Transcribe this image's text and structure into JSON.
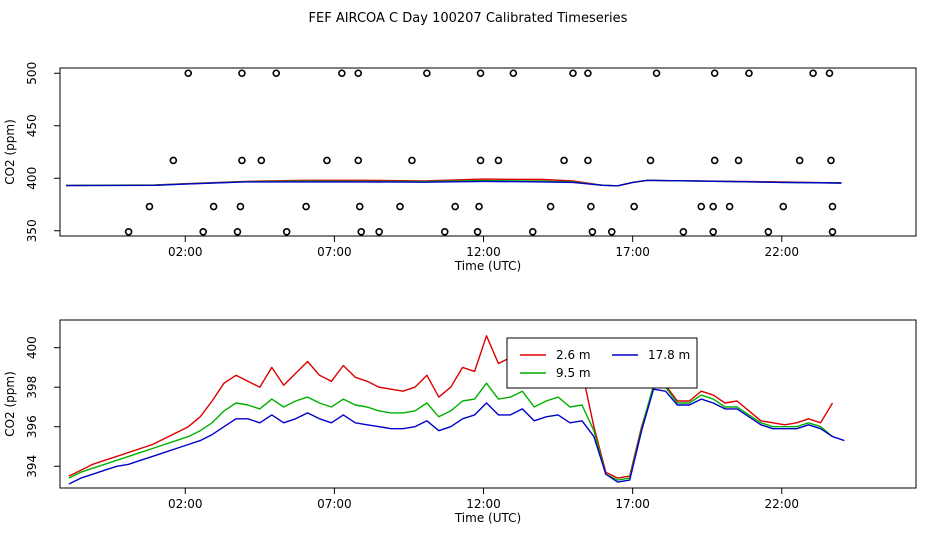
{
  "title": "FEF AIRCOA C  Day 100207  Calibrated Timeseries",
  "colors": {
    "red": "#dd0000",
    "green": "#00b000",
    "blue": "#0000cc",
    "black": "#000000"
  },
  "chart_data": [
    {
      "type": "scatter",
      "xlabel": "Time (UTC)",
      "ylabel": "CO2 (ppm)",
      "xlim": [
        -2.2,
        26.5
      ],
      "ylim": [
        345,
        505
      ],
      "xtick_values": [
        2,
        7,
        12,
        17,
        22
      ],
      "xtick_labels": [
        "02:00",
        "07:00",
        "12:00",
        "17:00",
        "22:00"
      ],
      "ytick_values": [
        350,
        400,
        450,
        500
      ],
      "ytick_labels": [
        "350",
        "400",
        "450",
        "500"
      ],
      "grid": false,
      "points": {
        "x": [
          2.1,
          3.9,
          5.05,
          7.25,
          7.8,
          10.1,
          11.9,
          13.0,
          15.0,
          15.5,
          17.8,
          19.75,
          20.9,
          23.05,
          23.6,
          1.6,
          3.9,
          4.55,
          6.75,
          7.8,
          9.6,
          11.9,
          12.5,
          14.7,
          15.5,
          17.6,
          19.75,
          20.55,
          22.6,
          23.65,
          0.8,
          2.95,
          3.85,
          6.05,
          7.85,
          9.2,
          11.05,
          11.85,
          14.25,
          15.6,
          17.05,
          19.3,
          19.7,
          20.25,
          22.05,
          23.7,
          0.1,
          2.6,
          3.75,
          5.4,
          7.9,
          8.5,
          10.7,
          11.8,
          13.65,
          15.65,
          16.3,
          18.7,
          19.7,
          21.55,
          23.7
        ],
        "y": [
          500,
          500,
          500,
          500,
          500,
          500,
          500,
          500,
          500,
          500,
          500,
          500,
          500,
          500,
          500,
          417,
          417,
          417,
          417,
          417,
          417,
          417,
          417,
          417,
          417,
          417,
          417,
          417,
          417,
          417,
          373,
          373,
          373,
          373,
          373,
          373,
          373,
          373,
          373,
          373,
          373,
          373,
          373,
          373,
          373,
          373,
          349,
          349,
          349,
          349,
          349,
          349,
          349,
          349,
          349,
          349,
          349,
          349,
          349,
          349,
          349
        ]
      },
      "series": [
        {
          "name": "2.6 m",
          "color": "#dd0000",
          "x": [
            -2.0,
            1.0,
            2.0,
            4.0,
            6.0,
            8.0,
            10.0,
            12.0,
            14.0,
            15.0,
            16.0,
            16.5,
            17.0,
            17.5,
            18.0,
            19.0,
            20.0,
            22.0,
            24.0
          ],
          "y": [
            393.2,
            393.6,
            394.8,
            397.0,
            398.0,
            398.0,
            397.5,
            399.2,
            398.8,
            397.5,
            393.3,
            392.8,
            396.0,
            398.0,
            397.8,
            397.5,
            397.2,
            396.5,
            395.5
          ]
        },
        {
          "name": "9.5 m",
          "color": "#00b000",
          "x": [
            -2.0,
            1.0,
            2.0,
            4.0,
            6.0,
            8.0,
            10.0,
            12.0,
            14.0,
            15.0,
            16.0,
            16.5,
            17.0,
            17.5,
            18.0,
            19.0,
            20.0,
            22.0,
            24.0
          ],
          "y": [
            393.2,
            393.5,
            394.6,
            396.7,
            397.2,
            397.0,
            396.8,
            397.8,
            397.2,
            396.5,
            393.3,
            392.8,
            396.0,
            398.0,
            397.8,
            397.5,
            397.0,
            396.0,
            395.5
          ]
        },
        {
          "name": "17.8 m",
          "color": "#0000cc",
          "x": [
            -2.0,
            1.0,
            2.0,
            4.0,
            6.0,
            8.0,
            10.0,
            12.0,
            14.0,
            15.0,
            16.0,
            16.5,
            17.0,
            17.5,
            18.0,
            19.0,
            20.0,
            22.0,
            24.0
          ],
          "y": [
            393.0,
            393.3,
            394.4,
            396.5,
            396.5,
            396.5,
            396.2,
            397.0,
            396.5,
            396.0,
            393.3,
            392.8,
            396.0,
            398.0,
            397.8,
            397.5,
            397.0,
            396.0,
            395.5
          ]
        }
      ]
    },
    {
      "type": "line",
      "xlabel": "Time (UTC)",
      "ylabel": "CO2 (ppm)",
      "xlim": [
        -2.2,
        26.5
      ],
      "ylim": [
        392.9,
        401.4
      ],
      "xtick_values": [
        2,
        7,
        12,
        17,
        22
      ],
      "xtick_labels": [
        "02:00",
        "07:00",
        "12:00",
        "17:00",
        "22:00"
      ],
      "ytick_values": [
        394,
        396,
        398,
        400
      ],
      "ytick_labels": [
        "394",
        "396",
        "398",
        "400"
      ],
      "grid": false,
      "legend": {
        "placement": "top-center",
        "entries": [
          "2.6 m",
          "9.5 m",
          "17.8 m"
        ]
      },
      "series": [
        {
          "name": "2.6 m",
          "color": "#dd0000",
          "x": [
            -1.9,
            -1.5,
            -1.1,
            -0.7,
            -0.3,
            0.1,
            0.5,
            0.9,
            1.3,
            1.7,
            2.1,
            2.5,
            2.9,
            3.3,
            3.7,
            4.1,
            4.5,
            4.9,
            5.3,
            5.7,
            6.1,
            6.5,
            6.9,
            7.3,
            7.7,
            8.1,
            8.5,
            8.9,
            9.3,
            9.7,
            10.1,
            10.5,
            10.9,
            11.3,
            11.7,
            12.1,
            12.5,
            12.9,
            13.3,
            13.7,
            14.1,
            14.5,
            14.9,
            15.3,
            15.7,
            16.1,
            16.5,
            16.9,
            17.3,
            17.7,
            18.1,
            18.5,
            18.9,
            19.3,
            19.7,
            20.1,
            20.5,
            20.9,
            21.3,
            21.7,
            22.1,
            22.5,
            22.9,
            23.3,
            23.7
          ],
          "y": [
            393.5,
            393.8,
            394.1,
            394.3,
            394.5,
            394.7,
            394.9,
            395.1,
            395.4,
            395.7,
            396.0,
            396.5,
            397.3,
            398.2,
            398.6,
            398.3,
            398.0,
            399.0,
            398.1,
            398.7,
            399.3,
            398.6,
            398.3,
            399.1,
            398.5,
            398.3,
            398.0,
            397.9,
            397.8,
            398.0,
            398.6,
            397.5,
            398.0,
            399.0,
            398.8,
            400.6,
            399.2,
            399.5,
            400.0,
            398.7,
            399.4,
            399.8,
            399.1,
            398.8,
            396.0,
            393.7,
            393.4,
            393.5,
            396.0,
            398.0,
            398.1,
            397.3,
            397.3,
            397.8,
            397.6,
            397.2,
            397.3,
            396.8,
            396.3,
            396.2,
            396.1,
            396.2,
            396.4,
            396.2,
            397.2
          ]
        },
        {
          "name": "9.5 m",
          "color": "#00b000",
          "x": [
            -1.9,
            -1.5,
            -1.1,
            -0.7,
            -0.3,
            0.1,
            0.5,
            0.9,
            1.3,
            1.7,
            2.1,
            2.5,
            2.9,
            3.3,
            3.7,
            4.1,
            4.5,
            4.9,
            5.3,
            5.7,
            6.1,
            6.5,
            6.9,
            7.3,
            7.7,
            8.1,
            8.5,
            8.9,
            9.3,
            9.7,
            10.1,
            10.5,
            10.9,
            11.3,
            11.7,
            12.1,
            12.5,
            12.9,
            13.3,
            13.7,
            14.1,
            14.5,
            14.9,
            15.3,
            15.7,
            16.1,
            16.5,
            16.9,
            17.3,
            17.7,
            18.1,
            18.5,
            18.9,
            19.3,
            19.7,
            20.1,
            20.5,
            20.9,
            21.3,
            21.7,
            22.1,
            22.5,
            22.9,
            23.3,
            23.7
          ],
          "y": [
            393.4,
            393.7,
            393.9,
            394.1,
            394.3,
            394.5,
            394.7,
            394.9,
            395.1,
            395.3,
            395.5,
            395.8,
            396.2,
            396.8,
            397.2,
            397.1,
            396.9,
            397.4,
            397.0,
            397.3,
            397.5,
            397.2,
            397.0,
            397.4,
            397.1,
            397.0,
            396.8,
            396.7,
            396.7,
            396.8,
            397.2,
            396.5,
            396.8,
            397.3,
            397.4,
            398.2,
            397.4,
            397.5,
            397.8,
            397.0,
            397.3,
            397.5,
            397.0,
            397.1,
            395.8,
            393.6,
            393.3,
            393.4,
            395.9,
            398.1,
            398.0,
            397.2,
            397.2,
            397.6,
            397.4,
            397.0,
            397.0,
            396.6,
            396.2,
            396.0,
            396.0,
            396.0,
            396.2,
            396.0,
            395.5
          ]
        },
        {
          "name": "17.8 m",
          "color": "#0000cc",
          "x": [
            -1.9,
            -1.5,
            -1.1,
            -0.7,
            -0.3,
            0.1,
            0.5,
            0.9,
            1.3,
            1.7,
            2.1,
            2.5,
            2.9,
            3.3,
            3.7,
            4.1,
            4.5,
            4.9,
            5.3,
            5.7,
            6.1,
            6.5,
            6.9,
            7.3,
            7.7,
            8.1,
            8.5,
            8.9,
            9.3,
            9.7,
            10.1,
            10.5,
            10.9,
            11.3,
            11.7,
            12.1,
            12.5,
            12.9,
            13.3,
            13.7,
            14.1,
            14.5,
            14.9,
            15.3,
            15.7,
            16.1,
            16.5,
            16.9,
            17.3,
            17.7,
            18.1,
            18.5,
            18.9,
            19.3,
            19.7,
            20.1,
            20.5,
            20.9,
            21.3,
            21.7,
            22.1,
            22.5,
            22.9,
            23.3,
            23.7,
            24.1
          ],
          "y": [
            393.1,
            393.4,
            393.6,
            393.8,
            394.0,
            394.1,
            394.3,
            394.5,
            394.7,
            394.9,
            395.1,
            395.3,
            395.6,
            396.0,
            396.4,
            396.4,
            396.2,
            396.6,
            396.2,
            396.4,
            396.7,
            396.4,
            396.2,
            396.6,
            396.2,
            396.1,
            396.0,
            395.9,
            395.9,
            396.0,
            396.3,
            395.8,
            396.0,
            396.4,
            396.6,
            397.2,
            396.6,
            396.6,
            396.9,
            396.3,
            396.5,
            396.6,
            396.2,
            396.3,
            395.5,
            393.6,
            393.2,
            393.3,
            395.8,
            397.9,
            397.8,
            397.1,
            397.1,
            397.4,
            397.2,
            396.9,
            396.9,
            396.5,
            396.1,
            395.9,
            395.9,
            395.9,
            396.1,
            395.9,
            395.5,
            395.3
          ]
        }
      ]
    }
  ]
}
